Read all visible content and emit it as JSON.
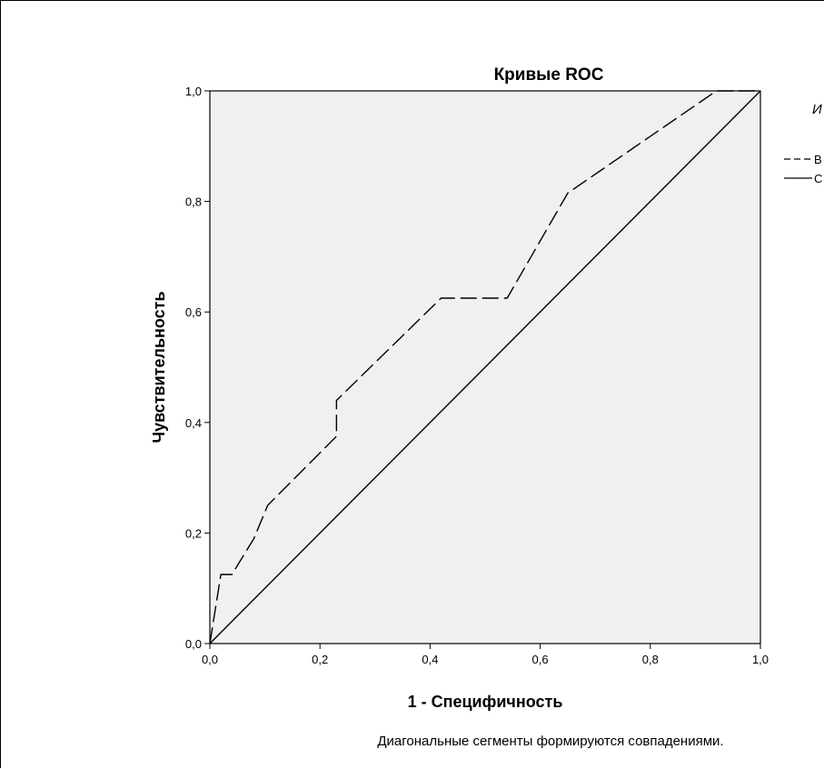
{
  "footnote": "Диагональные сегменты формируются совпадениями.",
  "chart_data": {
    "type": "line",
    "title": "Кривые ROC",
    "xlabel": "1 - Специфичность",
    "ylabel": "Чувствительность",
    "xlim": [
      0,
      1
    ],
    "ylim": [
      0,
      1
    ],
    "x_ticks": [
      "0,0",
      "0,2",
      "0,4",
      "0,6",
      "0,8",
      "1,0"
    ],
    "y_ticks": [
      "0,0",
      "0,2",
      "0,4",
      "0,6",
      "0,8",
      "1,0"
    ],
    "grid": false,
    "plot_background": "#f0f0f0",
    "legend": {
      "placement": "right",
      "title": "И",
      "entries": [
        "В",
        "С"
      ]
    },
    "series": [
      {
        "name": "В",
        "style": "dashed",
        "x": [
          0.0,
          0.02,
          0.04,
          0.08,
          0.105,
          0.23,
          0.23,
          0.42,
          0.54,
          0.65,
          0.92,
          1.0
        ],
        "y": [
          0.0,
          0.125,
          0.125,
          0.19,
          0.25,
          0.375,
          0.44,
          0.625,
          0.625,
          0.815,
          1.0,
          1.0
        ]
      },
      {
        "name": "С",
        "style": "solid",
        "x": [
          0.0,
          1.0
        ],
        "y": [
          0.0,
          1.0
        ]
      }
    ]
  }
}
